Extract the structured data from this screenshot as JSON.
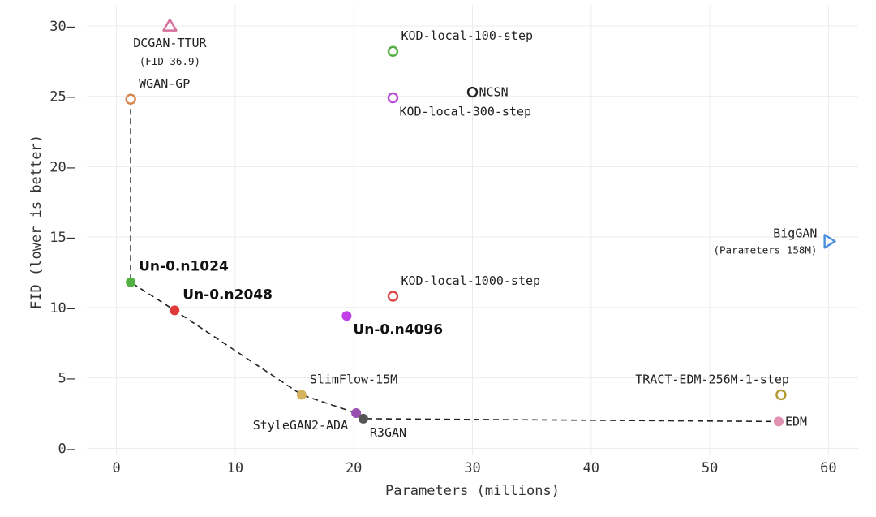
{
  "chart_data": {
    "type": "scatter",
    "xlabel": "Parameters (millions)",
    "ylabel": "FID (lower is better)",
    "xlim": [
      -2.5,
      62.5
    ],
    "ylim": [
      -0.5,
      31.5
    ],
    "xticks": [
      0,
      10,
      20,
      30,
      40,
      50,
      60
    ],
    "yticks": [
      0,
      5,
      10,
      15,
      20,
      25,
      30
    ],
    "grid": true,
    "points": [
      {
        "name": "DCGAN-TTUR",
        "sublabel": "(FID 36.9)",
        "x": 4.5,
        "y": 30.0,
        "marker": "triangle-up",
        "filled": false,
        "color": "#d4709b",
        "label_pos": "below"
      },
      {
        "name": "WGAN-GP",
        "x": 1.2,
        "y": 24.8,
        "marker": "circle",
        "filled": false,
        "color": "#d8844d",
        "label_pos": "above-right"
      },
      {
        "name": "KOD-local-100-step",
        "x": 23.3,
        "y": 28.2,
        "marker": "circle",
        "filled": false,
        "color": "#52b043",
        "label_pos": "above-right"
      },
      {
        "name": "NCSN",
        "x": 30.0,
        "y": 25.3,
        "marker": "circle",
        "filled": false,
        "color": "#222222",
        "label_pos": "right"
      },
      {
        "name": "KOD-local-300-step",
        "x": 23.3,
        "y": 24.9,
        "marker": "circle",
        "filled": false,
        "color": "#b848d8",
        "label_pos": "below-right"
      },
      {
        "name": "BigGAN",
        "sublabel": "(Parameters 158M)",
        "x": 60.0,
        "y": 14.7,
        "marker": "triangle-right",
        "filled": false,
        "color": "#4a8ede",
        "label_pos": "left"
      },
      {
        "name": "Un-0.n1024",
        "x": 1.2,
        "y": 11.8,
        "marker": "circle",
        "filled": true,
        "color": "#52b043",
        "label_pos": "above-right",
        "bold": true
      },
      {
        "name": "Un-0.n2048",
        "x": 4.9,
        "y": 9.8,
        "marker": "circle",
        "filled": true,
        "color": "#e03b3b",
        "label_pos": "above-right",
        "bold": true
      },
      {
        "name": "KOD-local-1000-step",
        "x": 23.3,
        "y": 10.8,
        "marker": "circle",
        "filled": false,
        "color": "#e04848",
        "label_pos": "above-right"
      },
      {
        "name": "Un-0.n4096",
        "x": 19.4,
        "y": 9.4,
        "marker": "circle",
        "filled": true,
        "color": "#c23ee6",
        "label_pos": "below-right",
        "bold": true
      },
      {
        "name": "SlimFlow-15M",
        "x": 15.6,
        "y": 3.8,
        "marker": "circle",
        "filled": true,
        "color": "#d4b35c",
        "label_pos": "above-right"
      },
      {
        "name": "StyleGAN2-ADA",
        "x": 20.2,
        "y": 2.5,
        "marker": "circle",
        "filled": true,
        "color": "#9850b0",
        "label_pos": "below-left"
      },
      {
        "name": "R3GAN",
        "x": 20.8,
        "y": 2.1,
        "marker": "circle",
        "filled": true,
        "color": "#555555",
        "label_pos": "below-right"
      },
      {
        "name": "TRACT-EDM-256M-1-step",
        "x": 56.0,
        "y": 3.8,
        "marker": "circle",
        "filled": false,
        "color": "#b09a2e",
        "label_pos": "above-left"
      },
      {
        "name": "EDM",
        "x": 55.8,
        "y": 1.9,
        "marker": "circle",
        "filled": true,
        "color": "#e090b0",
        "label_pos": "right"
      }
    ],
    "frontier": [
      [
        1.2,
        24.8
      ],
      [
        1.2,
        11.8
      ],
      [
        4.9,
        9.8
      ],
      [
        15.6,
        3.8
      ],
      [
        20.2,
        2.5
      ],
      [
        20.8,
        2.1
      ],
      [
        55.8,
        1.9
      ]
    ]
  }
}
